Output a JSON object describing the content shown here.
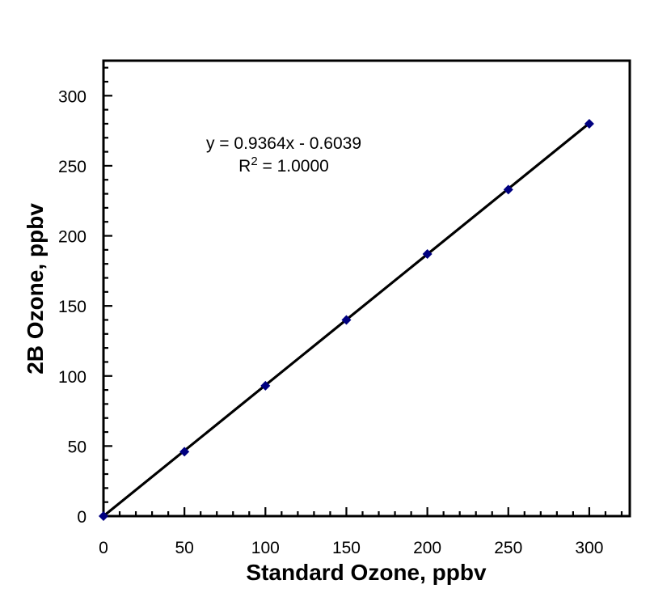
{
  "chart_data": {
    "type": "scatter",
    "title": "",
    "xlabel": "Standard Ozone, ppbv",
    "ylabel": "2B Ozone, ppbv",
    "x": [
      0,
      50,
      100,
      150,
      200,
      250,
      300
    ],
    "y": [
      0,
      46,
      93,
      140,
      187,
      233,
      280
    ],
    "xlim": [
      0,
      325
    ],
    "ylim": [
      0,
      325
    ],
    "x_tick_labels": [
      "0",
      "50",
      "100",
      "150",
      "200",
      "250",
      "300"
    ],
    "y_tick_labels": [
      "0",
      "50",
      "100",
      "150",
      "200",
      "250",
      "300"
    ],
    "major_tick_interval": 50,
    "minor_tick_interval": 10,
    "grid": false,
    "legend_position": "none",
    "trendline": {
      "slope": 0.9364,
      "intercept": -0.6039,
      "x_start": 0,
      "x_end": 300
    },
    "annotation": {
      "equation": "y = 0.9364x - 0.6039",
      "r2_prefix": "R",
      "r2_sup": "2",
      "r2_suffix": " = 1.0000"
    },
    "marker": {
      "shape": "diamond",
      "color": "#000080"
    },
    "colors": {
      "trendline": "#000000",
      "axis": "#000000",
      "text": "#000000",
      "background": "#ffffff"
    }
  }
}
